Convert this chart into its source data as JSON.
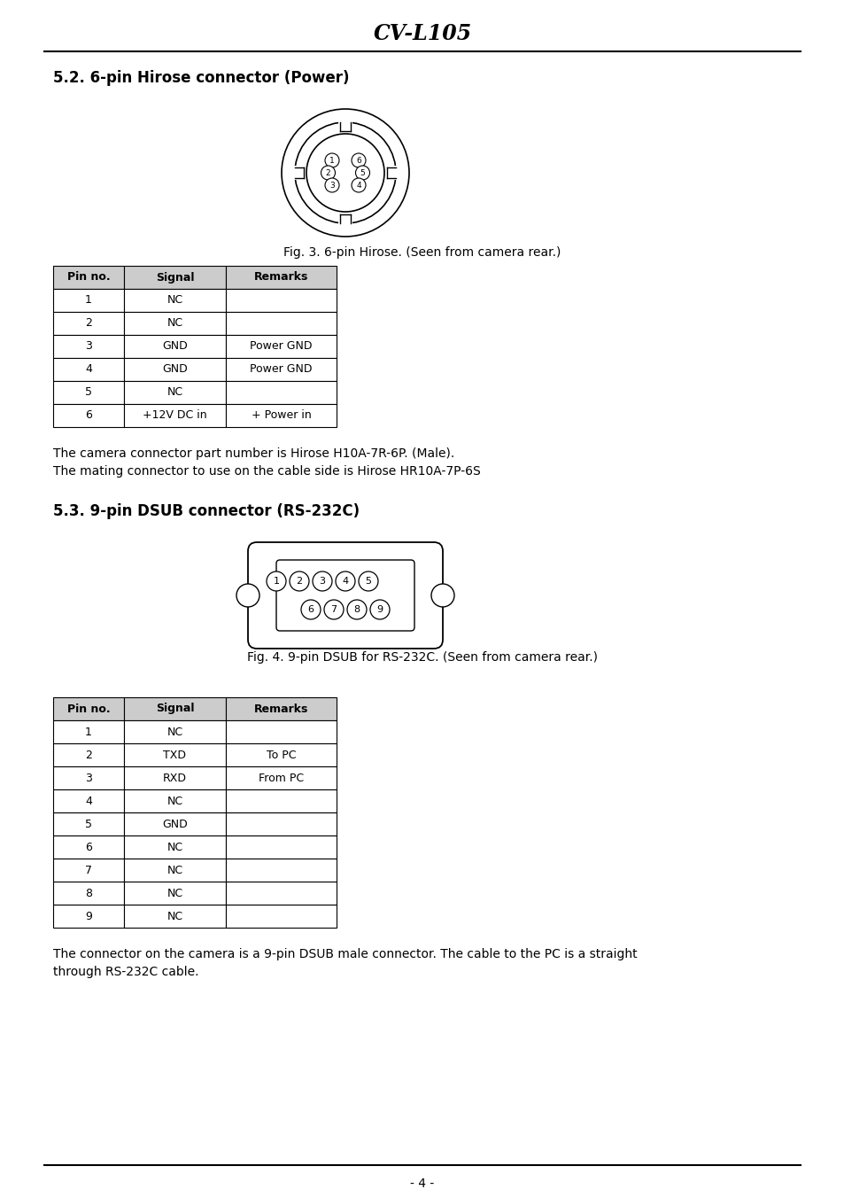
{
  "title": "CV-L105",
  "page_bg": "#ffffff",
  "section1_title": "5.2. 6-pin Hirose connector (Power)",
  "fig3_caption": "Fig. 3. 6-pin Hirose. (Seen from camera rear.)",
  "hirose_table_headers": [
    "Pin no.",
    "Signal",
    "Remarks"
  ],
  "hirose_table_data": [
    [
      "1",
      "NC",
      ""
    ],
    [
      "2",
      "NC",
      ""
    ],
    [
      "3",
      "GND",
      "Power GND"
    ],
    [
      "4",
      "GND",
      "Power GND"
    ],
    [
      "5",
      "NC",
      ""
    ],
    [
      "6",
      "+12V DC in",
      "+ Power in"
    ]
  ],
  "hirose_note1": "The camera connector part number is Hirose H10A-7R-6P. (Male).",
  "hirose_note2": "The mating connector to use on the cable side is Hirose HR10A-7P-6S",
  "section2_title": "5.3. 9-pin DSUB connector (RS-232C)",
  "fig4_caption": "Fig. 4. 9-pin DSUB for RS-232C. (Seen from camera rear.)",
  "dsub_table_headers": [
    "Pin no.",
    "Signal",
    "Remarks"
  ],
  "dsub_table_data": [
    [
      "1",
      "NC",
      ""
    ],
    [
      "2",
      "TXD",
      "To PC"
    ],
    [
      "3",
      "RXD",
      "From PC"
    ],
    [
      "4",
      "NC",
      ""
    ],
    [
      "5",
      "GND",
      ""
    ],
    [
      "6",
      "NC",
      ""
    ],
    [
      "7",
      "NC",
      ""
    ],
    [
      "8",
      "NC",
      ""
    ],
    [
      "9",
      "NC",
      ""
    ]
  ],
  "dsub_note": "The connector on the camera is a 9-pin DSUB male connector. The cable to the PC is a straight\nthrough RS-232C cable.",
  "page_number": "- 4 -"
}
